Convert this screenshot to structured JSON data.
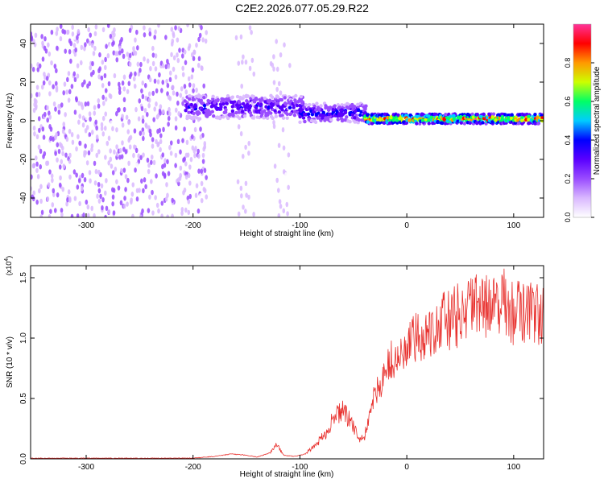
{
  "title": "C2E2.2026.077.05.29.R22",
  "colors": {
    "line": "#e8322f",
    "colormap": [
      "#ffffff",
      "#d9b8ff",
      "#9a4cff",
      "#5a00ff",
      "#0000ff",
      "#00ccff",
      "#00ff66",
      "#ccff00",
      "#ff9900",
      "#ff0000",
      "#ff3399"
    ]
  },
  "chart_data": [
    {
      "type": "heatmap",
      "title": "",
      "xlabel": "Height of straight line (km)",
      "ylabel": "Frequency (Hz)",
      "xlim": [
        -352,
        128
      ],
      "ylim": [
        -50,
        50
      ],
      "xticks": [
        -300,
        -200,
        -100,
        0,
        100
      ],
      "xtick_labels": [
        "-300",
        "-200",
        "-100",
        "0",
        "100"
      ],
      "yticks": [
        -40,
        -20,
        0,
        20,
        40
      ],
      "ytick_labels": [
        "-40",
        "-20",
        "0",
        "20",
        "40"
      ],
      "colorbar": {
        "label": "Normalized spectral amplitude",
        "range": [
          0.0,
          1.0
        ],
        "ticks": [
          0.0,
          0.2,
          0.4,
          0.6,
          0.8
        ],
        "tick_labels": [
          "0.0",
          "0.2",
          "0.4",
          "0.6",
          "0.8"
        ]
      },
      "features": [
        {
          "name": "broadband noise",
          "x_range": [
            -352,
            -190
          ],
          "freq_range": [
            -50,
            50
          ],
          "amplitude": 0.15
        },
        {
          "name": "vertical stripe",
          "x_range": [
            -162,
            -145
          ],
          "freq_range": [
            -50,
            50
          ],
          "amplitude": 0.1
        },
        {
          "name": "vertical stripe",
          "x_range": [
            -128,
            -110
          ],
          "freq_range": [
            -50,
            50
          ],
          "amplitude": 0.1
        },
        {
          "name": "signal onset",
          "x_range": [
            -210,
            -100
          ],
          "freq_center": 7,
          "freq_width": 12,
          "amplitude": 0.35
        },
        {
          "name": "descending trace",
          "x_range": [
            -100,
            -40
          ],
          "freq_center": 4,
          "freq_width": 10,
          "amplitude": 0.4
        },
        {
          "name": "steady trace",
          "x_range": [
            -40,
            128
          ],
          "freq_center": 1,
          "freq_width": 5,
          "amplitude": 0.85
        }
      ]
    },
    {
      "type": "line",
      "title": "",
      "xlabel": "Height of straight line (km)",
      "ylabel": "SNR (10 * v/v)",
      "y_multiplier": "(x10",
      "y_multiplier_exp": "4",
      "y_multiplier_close": ")",
      "xlim": [
        -352,
        128
      ],
      "ylim": [
        0,
        1.6
      ],
      "xticks": [
        -300,
        -200,
        -100,
        0,
        100
      ],
      "xtick_labels": [
        "-300",
        "-200",
        "-100",
        "0",
        "100"
      ],
      "yticks": [
        0.0,
        0.5,
        1.0,
        1.5
      ],
      "ytick_labels": [
        "0.0",
        "0.5",
        "1.0",
        "1.5"
      ],
      "series": [
        {
          "name": "SNR",
          "x": [
            -352,
            -300,
            -250,
            -200,
            -180,
            -165,
            -150,
            -140,
            -128,
            -122,
            -115,
            -105,
            -95,
            -85,
            -75,
            -68,
            -60,
            -52,
            -45,
            -40,
            -35,
            -28,
            -22,
            -16,
            -10,
            -5,
            0,
            10,
            20,
            30,
            40,
            50,
            60,
            70,
            80,
            90,
            100,
            110,
            120,
            128
          ],
          "y": [
            0.005,
            0.005,
            0.005,
            0.006,
            0.02,
            0.04,
            0.03,
            0.015,
            0.05,
            0.12,
            0.03,
            0.02,
            0.04,
            0.12,
            0.22,
            0.35,
            0.4,
            0.3,
            0.18,
            0.15,
            0.4,
            0.55,
            0.7,
            0.8,
            0.8,
            0.85,
            0.92,
            1.0,
            1.05,
            1.12,
            1.15,
            1.2,
            1.25,
            1.25,
            1.28,
            1.3,
            1.2,
            1.22,
            1.2,
            1.18
          ]
        }
      ]
    }
  ]
}
